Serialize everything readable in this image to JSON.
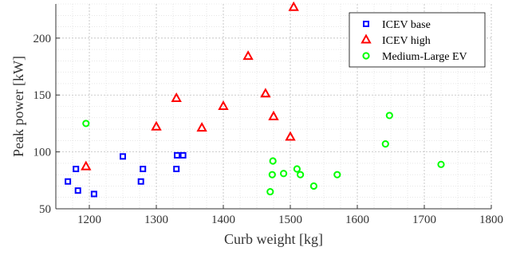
{
  "chart_data": {
    "type": "scatter",
    "title": "",
    "xlabel": "Curb weight [kg]",
    "ylabel": "Peak power [kW]",
    "xlim": [
      1150,
      1800
    ],
    "ylim": [
      50,
      230
    ],
    "xticks": [
      1200,
      1300,
      1400,
      1500,
      1600,
      1700,
      1800
    ],
    "yticks": [
      50,
      100,
      150,
      200
    ],
    "grid": true,
    "legend_position": "top-right",
    "series": [
      {
        "name": "ICEV base",
        "marker": "square",
        "color": "#0000ff",
        "x": [
          1168,
          1180,
          1183,
          1207,
          1250,
          1277,
          1280,
          1330,
          1331,
          1340
        ],
        "y": [
          74,
          85,
          66,
          63,
          96,
          74,
          85,
          85,
          97,
          97
        ]
      },
      {
        "name": "ICEV high",
        "marker": "triangle",
        "color": "#ff0000",
        "x": [
          1195,
          1300,
          1330,
          1368,
          1400,
          1437,
          1463,
          1475,
          1500,
          1505
        ],
        "y": [
          87,
          122,
          147,
          121,
          140,
          184,
          151,
          131,
          113,
          227
        ]
      },
      {
        "name": "Medium-Large EV",
        "marker": "circle",
        "color": "#00ff00",
        "x": [
          1195,
          1470,
          1473,
          1474,
          1490,
          1510,
          1515,
          1535,
          1570,
          1642,
          1648,
          1725
        ],
        "y": [
          125,
          65,
          80,
          92,
          81,
          85,
          80,
          70,
          80,
          107,
          132,
          89
        ]
      }
    ]
  }
}
